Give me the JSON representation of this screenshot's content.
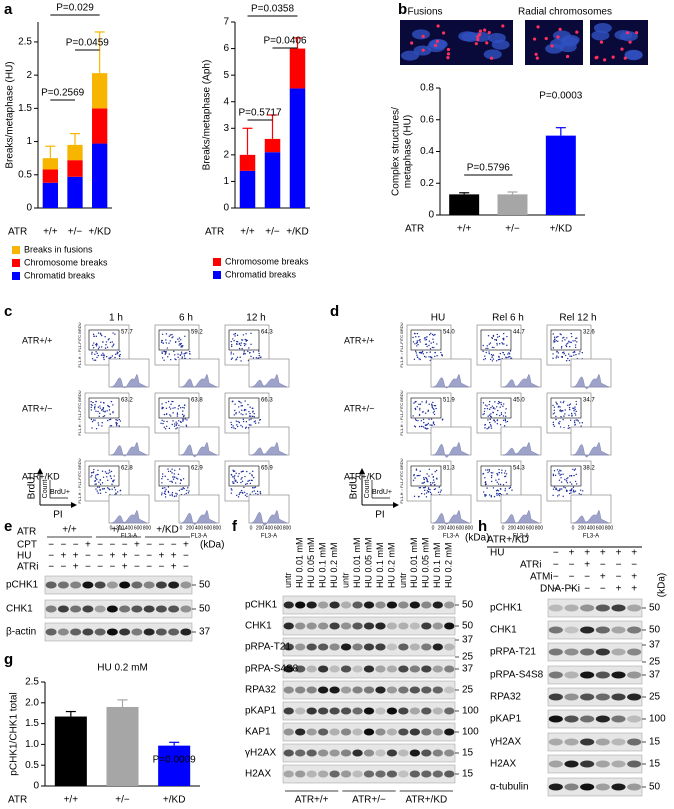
{
  "chart_data": [
    {
      "type": "bar",
      "stacked": true,
      "y_label": "Breaks/metaphase (HU)",
      "x_label": "ATR",
      "categories": [
        "+/+",
        "+/−",
        "+/KD"
      ],
      "series": [
        {
          "name": "Chromatid breaks",
          "color": "#0000ff",
          "values": [
            0.38,
            0.47,
            0.97
          ]
        },
        {
          "name": "Chromosome breaks",
          "color": "#ff0000",
          "values": [
            0.2,
            0.25,
            0.53
          ]
        },
        {
          "name": "Breaks in fusions",
          "color": "#f7b500",
          "values": [
            0.17,
            0.23,
            0.53
          ]
        }
      ],
      "errors": [
        0.18,
        0.17,
        0.62
      ],
      "ylim": [
        0,
        2.8
      ],
      "yticks": [
        0,
        0.5,
        1,
        1.5,
        2,
        2.5
      ],
      "annotations": [
        "P=0.2569",
        "P=0.0459",
        "P=0.029"
      ]
    },
    {
      "type": "bar",
      "stacked": true,
      "y_label": "Breaks/metaphase (Aph)",
      "x_label": "ATR",
      "categories": [
        "+/+",
        "+/−",
        "+/KD"
      ],
      "series": [
        {
          "name": "Chromatid breaks",
          "color": "#0000ff",
          "values": [
            1.4,
            2.1,
            4.5
          ]
        },
        {
          "name": "Chromosome breaks",
          "color": "#ff0000",
          "values": [
            0.6,
            0.5,
            1.5
          ]
        }
      ],
      "errors": [
        1.0,
        0.9,
        0.4
      ],
      "ylim": [
        0,
        7
      ],
      "yticks": [
        0,
        1,
        2,
        3,
        4,
        5,
        6,
        7
      ],
      "annotations": [
        "P=0.5717",
        "P=0.0406",
        "P=0.0358"
      ]
    },
    {
      "type": "bar",
      "y_label": [
        "Complex structures/",
        "metaphase (HU)"
      ],
      "x_label": "ATR",
      "categories": [
        "+/+",
        "+/−",
        "+/KD"
      ],
      "values": [
        0.13,
        0.13,
        0.5
      ],
      "errors": [
        0.01,
        0.015,
        0.05
      ],
      "colors": [
        "#000000",
        "#a6a6a6",
        "#0000ff"
      ],
      "ylim": [
        0,
        0.8
      ],
      "yticks": [
        0,
        0.2,
        0.4,
        0.6,
        0.8
      ],
      "annotations": [
        "P=0.5796",
        "P=0.0003"
      ]
    },
    {
      "type": "bar",
      "title": "HU 0.2 mM",
      "y_label": "pCHK1/CHK1 total",
      "x_label": "ATR",
      "categories": [
        "+/+",
        "+/−",
        "+/KD"
      ],
      "values": [
        1.67,
        1.9,
        0.97
      ],
      "errors": [
        0.12,
        0.17,
        0.08
      ],
      "colors": [
        "#000000",
        "#a6a6a6",
        "#0000ff"
      ],
      "ylim": [
        0,
        2.5
      ],
      "yticks": [
        0,
        0.5,
        {
          "value": 1,
          "label": "1.0"
        },
        1.5,
        {
          "value": 2,
          "label": "2.0"
        },
        2.5
      ],
      "annotations": [
        "P=0.0009"
      ]
    }
  ],
  "panel_letters": [
    "a",
    "b",
    "c",
    "d",
    "e",
    "f",
    "g",
    "h"
  ],
  "micrographs": [
    "Fusions",
    "Radial chromosomes"
  ],
  "flow_panels": [
    {
      "columns": [
        "1 h",
        "6 h",
        "12 h"
      ],
      "rows": [
        "ATR+/+",
        "ATR+/−",
        "ATR+/KD"
      ],
      "gates": [
        [
          "57.7",
          "59.2",
          "64.3"
        ],
        [
          "63.2",
          "63.8",
          "66.3"
        ],
        [
          "62.8",
          "62.9",
          "65.9"
        ]
      ],
      "y_axis": "FL1-H :: FL1-FITC BRDU",
      "x_axis": "FL3-A",
      "x_ticks": [
        "0",
        "200",
        "400",
        "600",
        "800"
      ],
      "count": "Count",
      "axes": [
        "BrdU",
        "PI",
        "BrdU+"
      ]
    },
    {
      "columns": [
        "HU",
        "Rel 6 h",
        "Rel 12 h"
      ],
      "rows": [
        "ATR+/+",
        "ATR+/−",
        "ATR+/KD"
      ],
      "gates": [
        [
          "54.0",
          "44.7",
          "32.6"
        ],
        [
          "51.9",
          "45.0",
          "34.7"
        ],
        [
          "81.3",
          "54.3",
          "38.2"
        ]
      ],
      "y_axis": "FL1-H :: FL1-FITC BRDU",
      "x_axis": "FL3-A",
      "x_ticks": [
        "0",
        "200",
        "400",
        "600",
        "800"
      ],
      "count": "Count",
      "axes": [
        "BrdU",
        "PI",
        "BrdU+"
      ]
    }
  ],
  "blots": [
    {
      "conditions": [
        {
          "label": "ATR",
          "groups": [
            "+/+",
            "+/−",
            "+/KD"
          ]
        },
        {
          "label": "CPT",
          "signs": [
            "−",
            "−",
            "−",
            "+",
            "−",
            "−",
            "−",
            "+",
            "−",
            "−",
            "−",
            "+"
          ]
        },
        {
          "label": "HU",
          "signs": [
            "−",
            "+",
            "+",
            "−",
            "−",
            "+",
            "+",
            "−",
            "−",
            "+",
            "+",
            "−"
          ]
        },
        {
          "label": "ATRi",
          "signs": [
            "−",
            "−",
            "+",
            "−",
            "−",
            "−",
            "+",
            "−",
            "−",
            "−",
            "+",
            "−"
          ]
        }
      ],
      "unit": "(kDa)",
      "proteins": [
        {
          "name": "pCHK1",
          "kda": [
            50
          ]
        },
        {
          "name": "CHK1",
          "kda": [
            50
          ]
        },
        {
          "name": "β-actin",
          "kda": [
            37
          ]
        }
      ]
    },
    {
      "lanes": [
        "untr",
        "HU 0.01 mM",
        "HU 0.05 mM",
        "HU 0.1 mM",
        "HU 0.2 mM",
        "untr",
        "HU 0.01 mM",
        "HU 0.05 mM",
        "HU 0.1 mM",
        "HU 0.2 mM",
        "untr",
        "HU 0.01 mM",
        "HU 0.05 mM",
        "HU 0.1 mM",
        "HU 0.2 mM"
      ],
      "groups": [
        "ATR+/+",
        "ATR+/−",
        "ATR+/KD"
      ],
      "unit": "(kDa)",
      "proteins": [
        {
          "name": "pCHK1",
          "kda": [
            50
          ]
        },
        {
          "name": "CHK1",
          "kda": [
            50
          ]
        },
        {
          "name": "pRPA-T21",
          "kda": [
            37,
            25
          ]
        },
        {
          "name": "pRPA-S4S8",
          "kda": [
            37
          ]
        },
        {
          "name": "RPA32",
          "kda": [
            25
          ]
        },
        {
          "name": "pKAP1",
          "kda": [
            100
          ]
        },
        {
          "name": "KAP1",
          "kda": [
            100
          ]
        },
        {
          "name": "γH2AX",
          "kda": [
            15
          ]
        },
        {
          "name": "H2AX",
          "kda": [
            15
          ]
        }
      ]
    },
    {
      "title": "ATR+/KD",
      "conditions": [
        {
          "label": "HU",
          "signs": [
            "−",
            "+",
            "+",
            "+",
            "+",
            "+"
          ]
        },
        {
          "label": "ATRi",
          "signs": [
            "−",
            "−",
            "+",
            "−",
            "−",
            "−"
          ]
        },
        {
          "label": "ATMi",
          "signs": [
            "−",
            "−",
            "−",
            "+",
            "−",
            "+"
          ]
        },
        {
          "label": "DNA-PKi",
          "signs": [
            "−",
            "−",
            "−",
            "−",
            "+",
            "+"
          ]
        }
      ],
      "unit": "(kDa)",
      "proteins": [
        {
          "name": "pCHK1",
          "kda": [
            50
          ]
        },
        {
          "name": "CHK1",
          "kda": [
            50
          ]
        },
        {
          "name": "pRPA-T21",
          "kda": [
            37,
            25
          ]
        },
        {
          "name": "pRPA-S4S8",
          "kda": [
            37
          ]
        },
        {
          "name": "RPA32",
          "kda": [
            25
          ]
        },
        {
          "name": "pKAP1",
          "kda": [
            100
          ]
        },
        {
          "name": "γH2AX",
          "kda": [
            15
          ]
        },
        {
          "name": "H2AX",
          "kda": [
            15
          ]
        },
        {
          "name": "α-tubulin",
          "kda": [
            50
          ]
        }
      ]
    }
  ]
}
